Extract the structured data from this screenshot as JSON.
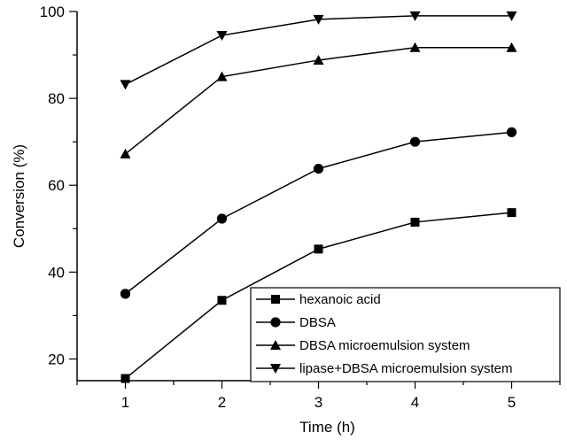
{
  "chart_data": {
    "type": "line",
    "xlabel": "Time (h)",
    "ylabel": "Conversion (%)",
    "x": [
      1,
      2,
      3,
      4,
      5
    ],
    "xlim": [
      0.5,
      5.5
    ],
    "ylim": [
      15,
      100
    ],
    "xticks": [
      1,
      2,
      3,
      4,
      5
    ],
    "yticks": [
      20,
      40,
      60,
      80,
      100
    ],
    "grid": false,
    "legend_position": "bottom-right",
    "series": [
      {
        "name": "hexanoic acid",
        "marker": "square",
        "values": [
          15.5,
          33.5,
          45.3,
          51.5,
          53.7
        ]
      },
      {
        "name": "DBSA",
        "marker": "circle",
        "values": [
          35.0,
          52.3,
          63.8,
          70.0,
          72.2
        ]
      },
      {
        "name": "DBSA microemulsion system",
        "marker": "triangle-up",
        "values": [
          67.2,
          85.0,
          88.8,
          91.7,
          91.7
        ]
      },
      {
        "name": "lipase+DBSA microemulsion system",
        "marker": "triangle-down",
        "values": [
          83.2,
          94.5,
          98.2,
          99.0,
          99.0
        ]
      }
    ],
    "colors": {
      "line": "#000000",
      "marker": "#000000"
    }
  }
}
